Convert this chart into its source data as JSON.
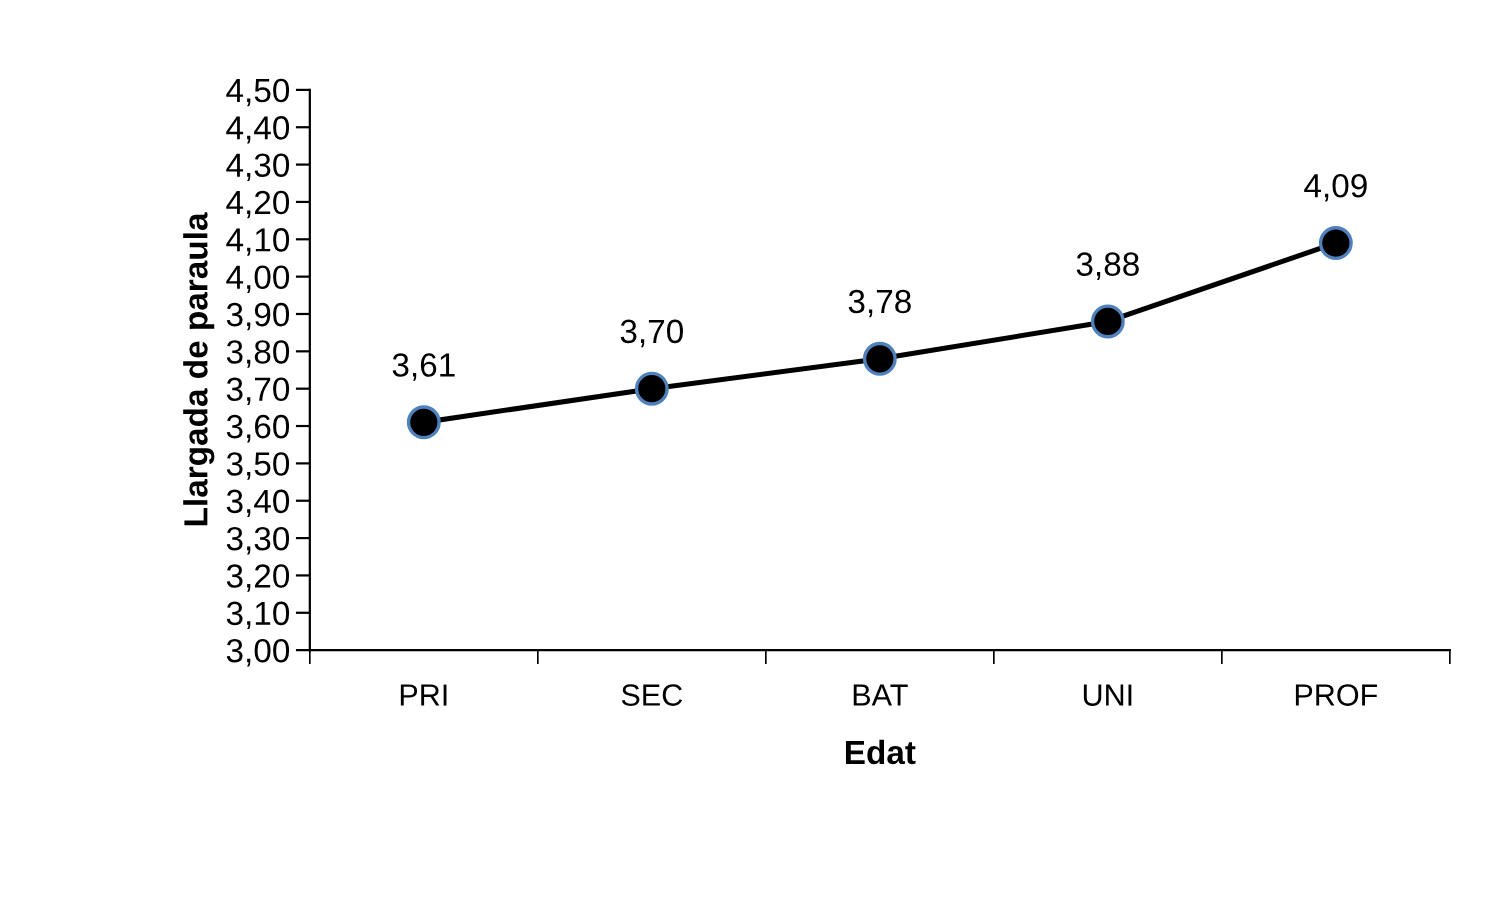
{
  "chart_data": {
    "type": "line",
    "xlabel": "Edat",
    "ylabel": "Llargada de paraula",
    "categories": [
      "PRI",
      "SEC",
      "BAT",
      "UNI",
      "PROF"
    ],
    "series": [
      {
        "color": "#000000",
        "values": [
          3.61,
          3.7,
          3.78,
          3.88,
          4.09
        ],
        "value_labels": [
          "3,61",
          "3,70",
          "3,78",
          "3,88",
          "4,09"
        ]
      }
    ],
    "ylim": [
      3.0,
      4.5
    ],
    "yticks": [
      {
        "value": 3.0,
        "label": "3,00"
      },
      {
        "value": 3.1,
        "label": "3,10"
      },
      {
        "value": 3.2,
        "label": "3,20"
      },
      {
        "value": 3.3,
        "label": "3,30"
      },
      {
        "value": 3.4,
        "label": "3,40"
      },
      {
        "value": 3.5,
        "label": "3,50"
      },
      {
        "value": 3.6,
        "label": "3,60"
      },
      {
        "value": 3.7,
        "label": "3,70"
      },
      {
        "value": 3.8,
        "label": "3,80"
      },
      {
        "value": 3.9,
        "label": "3,90"
      },
      {
        "value": 4.0,
        "label": "4,00"
      },
      {
        "value": 4.1,
        "label": "4,10"
      },
      {
        "value": 4.2,
        "label": "4,20"
      },
      {
        "value": 4.3,
        "label": "4,30"
      },
      {
        "value": 4.4,
        "label": "4,40"
      },
      {
        "value": 4.5,
        "label": "4,50"
      }
    ],
    "marker": "circle",
    "line_style": "solid",
    "grid": false,
    "legend": false
  }
}
